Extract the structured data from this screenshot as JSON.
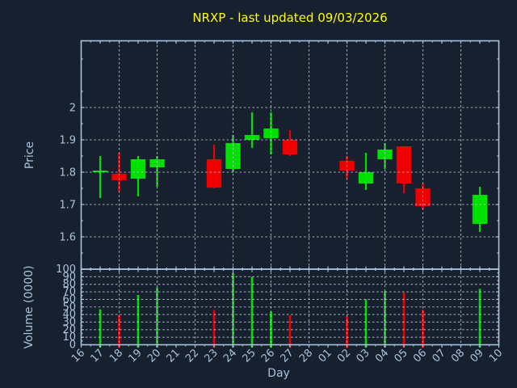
{
  "figure": {
    "background": "#16202e",
    "frame_color": "#a9c4de",
    "text_color": "#a9c4de",
    "grid_color": "#c3ccd6",
    "title_color": "#ffff00"
  },
  "chart_data": {
    "type": "candlestick",
    "title": "NRXP - last updated 09/03/2026",
    "xlabel": "Day",
    "up_color": "#00e000",
    "down_color": "#ee0000",
    "grid": "dashed, horizontal every 0.1 price / 10 volume, vertical every other day, drawn above data",
    "legend_position": "none",
    "x_categories": [
      "16",
      "17",
      "18",
      "19",
      "20",
      "21",
      "22",
      "23",
      "24",
      "25",
      "26",
      "27",
      "28",
      "01",
      "02",
      "03",
      "04",
      "05",
      "06",
      "07",
      "08",
      "09",
      "10"
    ],
    "price_panel": {
      "ylabel": "Price",
      "ylim": [
        1.5,
        2.21
      ],
      "ytick_values": [
        1.6,
        1.7,
        1.8,
        1.9,
        2.0
      ],
      "ytick_labels": [
        "1.6",
        "1.7",
        "1.8",
        "1.9",
        "2"
      ]
    },
    "volume_panel": {
      "ylabel": "Volume (0000)",
      "ylim": [
        0,
        100
      ],
      "ytick_values": [
        0,
        10,
        20,
        30,
        40,
        50,
        60,
        70,
        80,
        90,
        100
      ],
      "ytick_labels": [
        "0",
        "10",
        "20",
        "30",
        "40",
        "50",
        "60",
        "70",
        "80",
        "90",
        "100"
      ]
    },
    "candles": [
      {
        "day": "17",
        "open": 1.8,
        "high": 1.85,
        "low": 1.72,
        "close": 1.805,
        "volume": 47
      },
      {
        "day": "18",
        "open": 1.795,
        "high": 1.86,
        "low": 1.74,
        "close": 1.775,
        "volume": 39
      },
      {
        "day": "19",
        "open": 1.78,
        "high": 1.85,
        "low": 1.725,
        "close": 1.84,
        "volume": 66
      },
      {
        "day": "20",
        "open": 1.815,
        "high": 1.85,
        "low": 1.755,
        "close": 1.84,
        "volume": 76
      },
      {
        "day": "23",
        "open": 1.84,
        "high": 1.885,
        "low": 1.75,
        "close": 1.752,
        "volume": 46
      },
      {
        "day": "24",
        "open": 1.81,
        "high": 1.915,
        "low": 1.8,
        "close": 1.89,
        "volume": 95
      },
      {
        "day": "25",
        "open": 1.9,
        "high": 1.985,
        "low": 1.875,
        "close": 1.915,
        "volume": 90
      },
      {
        "day": "26",
        "open": 1.905,
        "high": 1.985,
        "low": 1.855,
        "close": 1.935,
        "volume": 44
      },
      {
        "day": "27",
        "open": 1.9,
        "high": 1.93,
        "low": 1.85,
        "close": 1.855,
        "volume": 39
      },
      {
        "day": "02",
        "open": 1.835,
        "high": 1.85,
        "low": 1.78,
        "close": 1.805,
        "volume": 37
      },
      {
        "day": "03",
        "open": 1.765,
        "high": 1.86,
        "low": 1.745,
        "close": 1.8,
        "volume": 60
      },
      {
        "day": "04",
        "open": 1.84,
        "high": 1.89,
        "low": 1.81,
        "close": 1.87,
        "volume": 71
      },
      {
        "day": "05",
        "open": 1.88,
        "high": 1.88,
        "low": 1.735,
        "close": 1.765,
        "volume": 69
      },
      {
        "day": "06",
        "open": 1.75,
        "high": 1.765,
        "low": 1.685,
        "close": 1.695,
        "volume": 46
      },
      {
        "day": "09",
        "open": 1.64,
        "high": 1.755,
        "low": 1.615,
        "close": 1.73,
        "volume": 74
      }
    ]
  }
}
